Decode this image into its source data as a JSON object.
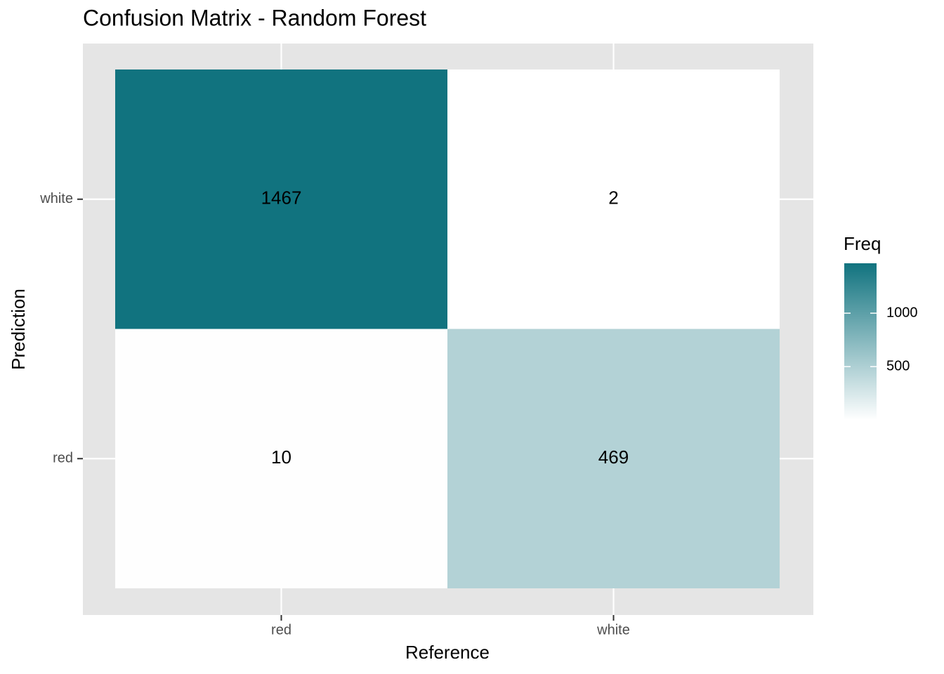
{
  "chart_data": {
    "type": "heatmap",
    "title": "Confusion Matrix - Random Forest",
    "x_label": "Reference",
    "y_label": "Prediction",
    "categories": [
      "red",
      "white"
    ],
    "y_categories": [
      "red",
      "white"
    ],
    "values": [
      [
        10,
        469
      ],
      [
        1467,
        2
      ]
    ],
    "low_color": "#ffffff",
    "high_color": "#11737f",
    "legend_title": "Freq",
    "colorbar_ticks": [
      500,
      1000
    ],
    "grid": true
  }
}
